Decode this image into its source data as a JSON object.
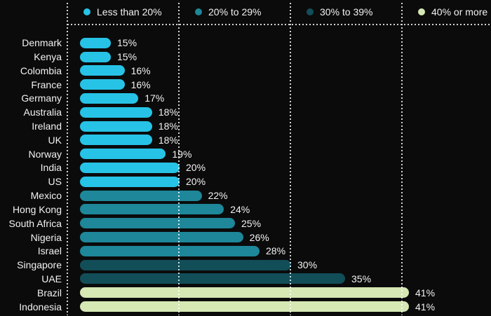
{
  "chart": {
    "background": "#0b0b0c",
    "text_color": "#f2f2f3"
  },
  "legend": {
    "position": "top",
    "items": [
      {
        "label": "Less than 20%",
        "color": "#27c3e6"
      },
      {
        "label": "20% to 29%",
        "color": "#1e8799"
      },
      {
        "label": "30% to 39%",
        "color": "#124e58"
      },
      {
        "label": "40% or more",
        "color": "#d6e8b4"
      }
    ]
  },
  "chart_data": {
    "type": "bar",
    "orientation": "horizontal",
    "title": "",
    "xlabel": "",
    "ylabel": "",
    "categories": [
      "Denmark",
      "Kenya",
      "Colombia",
      "France",
      "Germany",
      "Australia",
      "Ireland",
      "UK",
      "Norway",
      "India",
      "US",
      "Mexico",
      "Hong Kong",
      "South Africa",
      "Nigeria",
      "Israel",
      "Singapore",
      "UAE",
      "Brazil",
      "Indonesia"
    ],
    "values": [
      15,
      15,
      16,
      16,
      17,
      18,
      18,
      18,
      19,
      20,
      20,
      22,
      24,
      25,
      26,
      28,
      30,
      35,
      41,
      41
    ],
    "value_labels": [
      "15%",
      "15%",
      "16%",
      "16%",
      "17%",
      "18%",
      "18%",
      "18%",
      "19%",
      "20%",
      "20%",
      "22%",
      "24%",
      "25%",
      "26%",
      "28%",
      "30%",
      "35%",
      "41%",
      "41%"
    ],
    "group_index": [
      0,
      0,
      0,
      0,
      0,
      0,
      0,
      0,
      0,
      0,
      0,
      1,
      1,
      1,
      1,
      1,
      2,
      2,
      3,
      3
    ],
    "legend_entries": [
      "Less than 20%",
      "20% to 29%",
      "30% to 39%",
      "40% or more"
    ],
    "value_suffix": "%",
    "grid": "dotted vertical guides",
    "legend_position": "top"
  }
}
